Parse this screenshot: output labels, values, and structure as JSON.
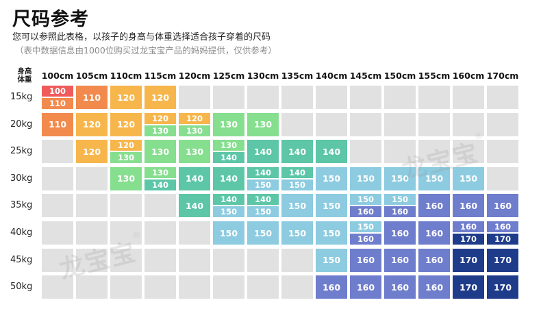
{
  "header": {
    "title": "尺码参考",
    "subtitle": "您可以参照此表格，以孩子的身高与体重选择适合孩子穿着的尺码",
    "note": "（表中数据信息由1000位购买过龙宝宝产品的妈妈提供，仅供参考）"
  },
  "corner": {
    "line1": "身高",
    "line2": "体重"
  },
  "heights": [
    "100cm",
    "105cm",
    "110cm",
    "115cm",
    "120cm",
    "125cm",
    "130cm",
    "135cm",
    "140cm",
    "145cm",
    "150cm",
    "155cm",
    "160cm",
    "170cm"
  ],
  "weights": [
    "15kg",
    "20kg",
    "25kg",
    "30kg",
    "35kg",
    "40kg",
    "45kg",
    "50kg"
  ],
  "watermark": {
    "text": "龙宝宝",
    "mark": "®"
  },
  "colors": {
    "empty": "#e1e1e1",
    "100": "#ef5b5b",
    "110": "#f18a4c",
    "120": "#f7b64c",
    "130": "#86de8f",
    "140": "#5cc6a6",
    "150": "#8ccbe0",
    "160": "#6f7dcd",
    "170": "#1f3c8a"
  },
  "grid": [
    [
      [
        "100",
        "110"
      ],
      [
        "110"
      ],
      [
        "120"
      ],
      [
        "120"
      ],
      [],
      [],
      [],
      [],
      [],
      [],
      [],
      [],
      [],
      []
    ],
    [
      [
        "110"
      ],
      [
        "120"
      ],
      [
        "120"
      ],
      [
        "120",
        "130"
      ],
      [
        "120",
        "130"
      ],
      [
        "130"
      ],
      [
        "130"
      ],
      [],
      [],
      [],
      [],
      [],
      [],
      []
    ],
    [
      [],
      [
        "120"
      ],
      [
        "120",
        "130"
      ],
      [
        "130"
      ],
      [
        "130"
      ],
      [
        "130",
        "140"
      ],
      [
        "140"
      ],
      [
        "140"
      ],
      [
        "140"
      ],
      [],
      [],
      [],
      [],
      []
    ],
    [
      [],
      [],
      [
        "130"
      ],
      [
        "130",
        "140"
      ],
      [
        "140"
      ],
      [
        "140"
      ],
      [
        "140",
        "150"
      ],
      [
        "140",
        "150"
      ],
      [
        "150"
      ],
      [
        "150"
      ],
      [
        "150"
      ],
      [
        "150"
      ],
      [
        "150"
      ],
      []
    ],
    [
      [],
      [],
      [],
      [],
      [
        "140"
      ],
      [
        "140",
        "150"
      ],
      [
        "140",
        "150"
      ],
      [
        "150"
      ],
      [
        "150"
      ],
      [
        "150",
        "160"
      ],
      [
        "150",
        "160"
      ],
      [
        "160"
      ],
      [
        "160"
      ],
      [
        "160"
      ]
    ],
    [
      [],
      [],
      [],
      [],
      [],
      [
        "150"
      ],
      [
        "150"
      ],
      [
        "150"
      ],
      [
        "150"
      ],
      [
        "150",
        "160"
      ],
      [
        "160"
      ],
      [
        "160"
      ],
      [
        "160",
        "170"
      ],
      [
        "160",
        "170"
      ]
    ],
    [
      [],
      [],
      [],
      [],
      [],
      [],
      [],
      [],
      [
        "150"
      ],
      [
        "160"
      ],
      [
        "160"
      ],
      [
        "160"
      ],
      [
        "170"
      ],
      [
        "170"
      ]
    ],
    [
      [],
      [],
      [],
      [],
      [],
      [],
      [],
      [],
      [
        "160"
      ],
      [
        "160"
      ],
      [
        "160"
      ],
      [
        "160"
      ],
      [
        "170"
      ],
      [
        "170"
      ]
    ]
  ]
}
